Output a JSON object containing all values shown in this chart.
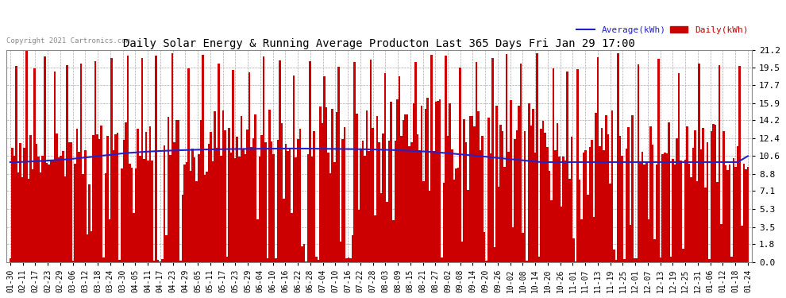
{
  "title": "Daily Solar Energy & Running Average Producton Last 365 Days Fri Jan 29 17:00",
  "copyright": "Copyright 2021 Cartronics.com",
  "legend_avg": "Average(kWh)",
  "legend_daily": "Daily(kWh)",
  "bar_color": "#cc0000",
  "avg_line_color": "#2222cc",
  "background_color": "#ffffff",
  "plot_bg_color": "#ffffff",
  "grid_color": "#aaaaaa",
  "title_color": "#000000",
  "yticks": [
    0.0,
    1.8,
    3.5,
    5.3,
    7.1,
    8.8,
    10.6,
    12.4,
    14.2,
    15.9,
    17.7,
    19.5,
    21.2
  ],
  "ylim": [
    0.0,
    21.2
  ],
  "xtick_labels": [
    "01-30",
    "02-11",
    "02-17",
    "02-23",
    "02-29",
    "03-06",
    "03-12",
    "03-18",
    "03-24",
    "03-30",
    "04-05",
    "04-11",
    "04-17",
    "04-23",
    "04-29",
    "05-05",
    "05-11",
    "05-17",
    "05-23",
    "05-29",
    "06-04",
    "06-10",
    "06-16",
    "06-22",
    "06-28",
    "07-04",
    "07-10",
    "07-16",
    "07-22",
    "07-28",
    "08-03",
    "08-09",
    "08-15",
    "08-21",
    "08-27",
    "09-02",
    "09-08",
    "09-14",
    "09-20",
    "09-26",
    "10-02",
    "10-08",
    "10-14",
    "10-20",
    "10-26",
    "11-01",
    "11-07",
    "11-13",
    "11-19",
    "11-25",
    "12-01",
    "12-07",
    "12-13",
    "12-19",
    "12-25",
    "12-31",
    "01-06",
    "01-12",
    "01-18",
    "01-24"
  ],
  "n_bars": 365,
  "avg_line_values": [
    10.0,
    10.0,
    10.0,
    10.0,
    10.0,
    10.0,
    10.0,
    10.05,
    10.05,
    10.05,
    10.05,
    10.05,
    10.1,
    10.1,
    10.1,
    10.1,
    10.1,
    10.15,
    10.15,
    10.15,
    10.15,
    10.2,
    10.2,
    10.2,
    10.2,
    10.25,
    10.25,
    10.25,
    10.3,
    10.3,
    10.3,
    10.35,
    10.35,
    10.4,
    10.4,
    10.4,
    10.45,
    10.45,
    10.5,
    10.5,
    10.5,
    10.55,
    10.55,
    10.6,
    10.6,
    10.65,
    10.65,
    10.7,
    10.7,
    10.7,
    10.75,
    10.75,
    10.8,
    10.8,
    10.85,
    10.85,
    10.9,
    10.9,
    10.92,
    10.92,
    10.95,
    10.95,
    10.97,
    11.0,
    11.0,
    11.02,
    11.02,
    11.05,
    11.05,
    11.07,
    11.07,
    11.1,
    11.1,
    11.1,
    11.12,
    11.12,
    11.12,
    11.15,
    11.15,
    11.15,
    11.17,
    11.17,
    11.18,
    11.18,
    11.2,
    11.2,
    11.2,
    11.22,
    11.22,
    11.22,
    11.23,
    11.23,
    11.25,
    11.25,
    11.25,
    11.26,
    11.26,
    11.27,
    11.27,
    11.28,
    11.28,
    11.28,
    11.29,
    11.29,
    11.3,
    11.3,
    11.3,
    11.3,
    11.31,
    11.31,
    11.31,
    11.31,
    11.32,
    11.32,
    11.32,
    11.32,
    11.33,
    11.33,
    11.33,
    11.33,
    11.34,
    11.34,
    11.34,
    11.34,
    11.35,
    11.35,
    11.35,
    11.35,
    11.35,
    11.35,
    11.35,
    11.35,
    11.35,
    11.35,
    11.36,
    11.36,
    11.36,
    11.36,
    11.36,
    11.36,
    11.36,
    11.36,
    11.36,
    11.36,
    11.36,
    11.36,
    11.35,
    11.35,
    11.35,
    11.35,
    11.35,
    11.35,
    11.35,
    11.35,
    11.35,
    11.34,
    11.34,
    11.34,
    11.34,
    11.34,
    11.33,
    11.33,
    11.33,
    11.33,
    11.32,
    11.32,
    11.32,
    11.31,
    11.31,
    11.31,
    11.3,
    11.3,
    11.3,
    11.29,
    11.29,
    11.29,
    11.28,
    11.28,
    11.27,
    11.27,
    11.26,
    11.26,
    11.25,
    11.25,
    11.24,
    11.23,
    11.23,
    11.22,
    11.22,
    11.21,
    11.2,
    11.2,
    11.19,
    11.18,
    11.17,
    11.16,
    11.15,
    11.14,
    11.13,
    11.12,
    11.11,
    11.1,
    11.09,
    11.08,
    11.07,
    11.05,
    11.04,
    11.03,
    11.01,
    11.0,
    10.99,
    10.97,
    10.96,
    10.94,
    10.93,
    10.91,
    10.89,
    10.88,
    10.86,
    10.84,
    10.83,
    10.81,
    10.79,
    10.77,
    10.75,
    10.73,
    10.71,
    10.69,
    10.67,
    10.65,
    10.63,
    10.61,
    10.59,
    10.57,
    10.55,
    10.53,
    10.51,
    10.49,
    10.47,
    10.45,
    10.43,
    10.41,
    10.39,
    10.37,
    10.35,
    10.33,
    10.31,
    10.29,
    10.27,
    10.25,
    10.23,
    10.21,
    10.19,
    10.17,
    10.15,
    10.13,
    10.11,
    10.09,
    10.07,
    10.05,
    10.03,
    10.01,
    10.0,
    10.0,
    10.0,
    10.0,
    10.0,
    10.0,
    10.0,
    10.0,
    10.0,
    10.0,
    10.0,
    10.0,
    10.0,
    10.0,
    10.0,
    10.0,
    10.0,
    10.0,
    10.0,
    10.0,
    10.0,
    10.0,
    10.0,
    10.0,
    10.0,
    10.0,
    10.0,
    10.0,
    10.0,
    10.0,
    10.0,
    10.0,
    10.0,
    10.0,
    10.0,
    10.0,
    10.0,
    10.0,
    10.0,
    10.0,
    10.0,
    10.0,
    10.0,
    10.0,
    10.0,
    10.0,
    10.0,
    10.0,
    10.0,
    10.0,
    10.0,
    10.0,
    10.0,
    10.0,
    10.0,
    10.0,
    10.0,
    10.0,
    10.0,
    10.0,
    10.0,
    10.0,
    10.0,
    10.0,
    10.0,
    10.0,
    10.0,
    10.0,
    10.0,
    10.0,
    10.0,
    10.0,
    10.0,
    10.0,
    10.0,
    10.0,
    10.0,
    10.0,
    10.0,
    10.0,
    10.0,
    10.0,
    10.0,
    10.0,
    10.0,
    10.0,
    10.0,
    10.0,
    10.0,
    10.0,
    10.0,
    10.0,
    10.0,
    10.0,
    10.0,
    10.0,
    10.0,
    10.0,
    10.0,
    10.0,
    10.6,
    10.6,
    10.6
  ]
}
